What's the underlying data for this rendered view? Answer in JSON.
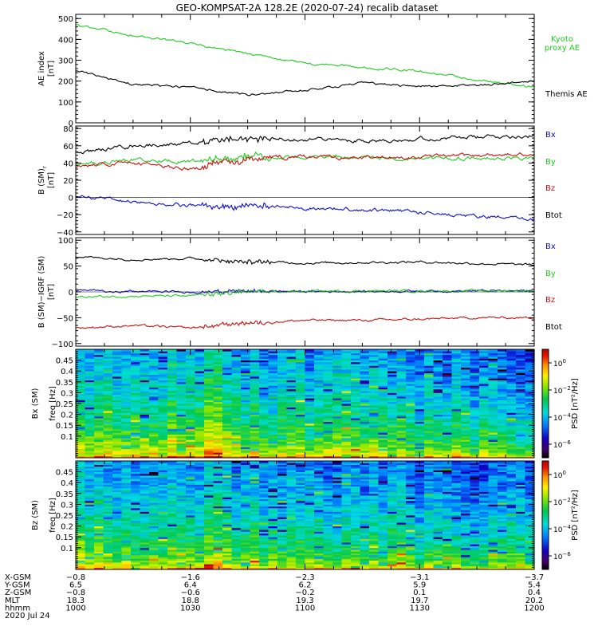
{
  "title": "GEO-KOMPSAT-2A 128.2E (2020-07-24) recalib dataset",
  "colors": {
    "black": "#000000",
    "green": "#22cc22",
    "red": "#cc1111",
    "blue": "#1111cc"
  },
  "chart_data": [
    {
      "type": "line",
      "panel": "ae",
      "ylabel": [
        "AE index",
        "[nT]"
      ],
      "ylim": [
        0,
        520
      ],
      "yticks": [
        0,
        100,
        200,
        300,
        400,
        500
      ],
      "x_hours": [
        10.0,
        10.25,
        10.5,
        10.75,
        11.0,
        11.25,
        11.5,
        11.75,
        12.0
      ],
      "series": [
        {
          "name": "Kyoto proxy AE",
          "label_lines": [
            "Kyoto",
            "proxy AE"
          ],
          "color": "green",
          "values": [
            468,
            420,
            380,
            330,
            285,
            265,
            248,
            205,
            170
          ]
        },
        {
          "name": "Themis AE",
          "color": "black",
          "values": [
            250,
            185,
            170,
            135,
            155,
            190,
            175,
            180,
            200
          ]
        }
      ]
    },
    {
      "type": "line",
      "panel": "bsm",
      "ylabel": [
        "B  (SM)",
        "[nT]"
      ],
      "ylabel_sub": "r",
      "ylim": [
        -43,
        83
      ],
      "yticks": [
        -40,
        -20,
        0,
        20,
        40,
        60,
        80
      ],
      "x_hours": [
        10.0,
        10.25,
        10.5,
        10.75,
        11.0,
        11.25,
        11.5,
        11.75,
        12.0
      ],
      "series": [
        {
          "name": "Bx",
          "color": "blue",
          "values": [
            2,
            -5,
            -10,
            -10,
            -12,
            -14,
            -17,
            -22,
            -26
          ]
        },
        {
          "name": "By",
          "color": "green",
          "values": [
            38,
            44,
            42,
            47,
            47,
            46,
            46,
            46,
            45
          ]
        },
        {
          "name": "Bz",
          "color": "red",
          "values": [
            36,
            40,
            33,
            45,
            47,
            46,
            47,
            49,
            50
          ]
        },
        {
          "name": "Btot",
          "color": "black",
          "values": [
            52,
            60,
            63,
            68,
            68,
            66,
            68,
            70,
            72
          ]
        }
      ]
    },
    {
      "type": "line",
      "panel": "bigrf",
      "ylabel": [
        "B (SM)−IGRF (SM)",
        "[nT]"
      ],
      "ylim": [
        -105,
        105
      ],
      "yticks": [
        -100,
        -50,
        0,
        50,
        100
      ],
      "x_hours": [
        10.0,
        10.25,
        10.5,
        10.75,
        11.0,
        11.25,
        11.5,
        11.75,
        12.0
      ],
      "series": [
        {
          "name": "Bx",
          "color": "blue",
          "values": [
            3,
            1,
            0,
            2,
            1,
            1,
            2,
            2,
            2
          ]
        },
        {
          "name": "By",
          "color": "green",
          "values": [
            -10,
            -8,
            -8,
            0,
            1,
            2,
            2,
            2,
            2
          ]
        },
        {
          "name": "Bz",
          "color": "red",
          "values": [
            -70,
            -65,
            -70,
            -60,
            -55,
            -55,
            -53,
            -50,
            -50
          ]
        },
        {
          "name": "Btot",
          "color": "black",
          "values": [
            68,
            63,
            65,
            58,
            56,
            57,
            58,
            55,
            52
          ]
        }
      ]
    },
    {
      "type": "heatmap",
      "panel": "spec-bx",
      "ylabel": [
        "Bx (SM)",
        "freq [Hz]"
      ],
      "ylim": [
        0,
        0.5
      ],
      "yticks": [
        0.1,
        0.15,
        0.2,
        0.25,
        0.3,
        0.35,
        0.4,
        0.45
      ],
      "ytick_labels": [
        "0.1",
        "0.15",
        "0.2",
        "0.25",
        "0.3",
        "0.35",
        "0.4",
        "0.45"
      ],
      "time_columns": 50,
      "freq_rows": 60,
      "colorbar": {
        "label": "PSD [nT²/Hz]",
        "log10_range": [
          -7,
          1
        ],
        "ticks": [
          0,
          -2,
          -4,
          -6
        ]
      }
    },
    {
      "type": "heatmap",
      "panel": "spec-bz",
      "ylabel": [
        "Bz (SM)",
        "freq [Hz]"
      ],
      "ylim": [
        0,
        0.5
      ],
      "yticks": [
        0.1,
        0.15,
        0.2,
        0.25,
        0.3,
        0.35,
        0.4,
        0.45
      ],
      "ytick_labels": [
        "0.1",
        "0.15",
        "0.2",
        "0.25",
        "0.3",
        "0.35",
        "0.4",
        "0.45"
      ],
      "time_columns": 50,
      "freq_rows": 60,
      "colorbar": {
        "label": "PSD [nT²/Hz]",
        "log10_range": [
          -7,
          1
        ],
        "ticks": [
          0,
          -2,
          -4,
          -6
        ]
      }
    }
  ],
  "x_axis": {
    "tick_hours": [
      10.0,
      10.5,
      11.0,
      11.5,
      12.0
    ],
    "rows": [
      {
        "name": "X-GSM",
        "values": [
          "−0.8",
          "−1.6",
          "−2.3",
          "−3.1",
          "−3.7"
        ]
      },
      {
        "name": "Y-GSM",
        "values": [
          "6.5",
          "6.4",
          "6.2",
          "5.9",
          "5.4"
        ]
      },
      {
        "name": "Z-GSM",
        "values": [
          "−0.8",
          "−0.6",
          "−0.2",
          "0.1",
          "0.4"
        ]
      },
      {
        "name": "MLT",
        "values": [
          "18.3",
          "18.8",
          "19.3",
          "19.7",
          "20.2"
        ]
      },
      {
        "name": "hhmm",
        "values": [
          "1000",
          "1030",
          "1100",
          "1130",
          "1200"
        ]
      }
    ],
    "date": "2020 Jul 24"
  }
}
